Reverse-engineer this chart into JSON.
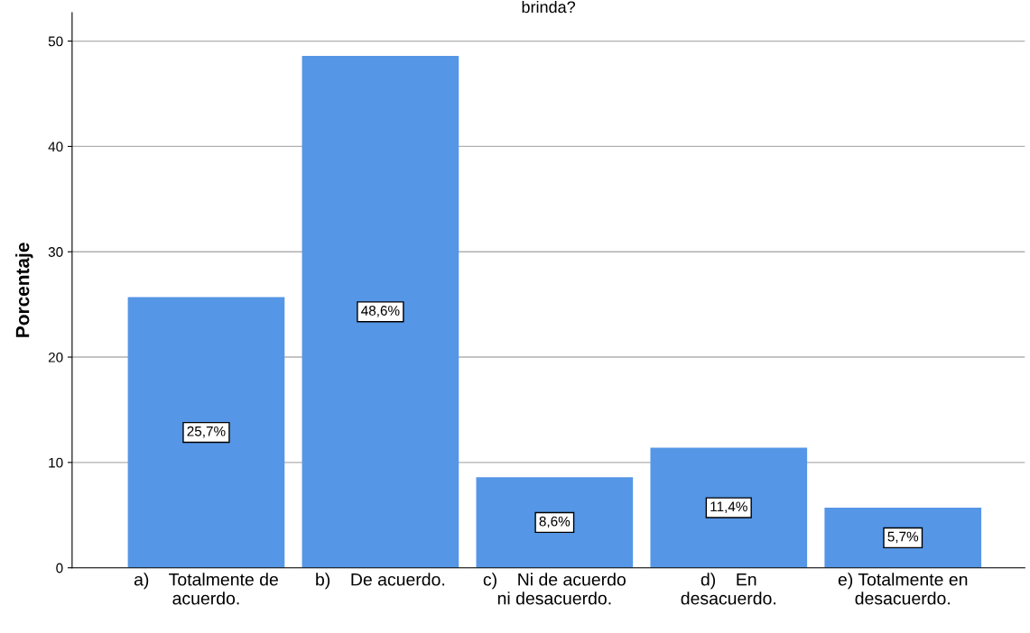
{
  "chart_data": {
    "type": "bar",
    "title": "brinda?",
    "ylabel": "Porcentaje",
    "categories": [
      "a)    Totalmente de\nacuerdo.",
      "b)    De acuerdo.",
      "c)    Ni de acuerdo\nni desacuerdo.",
      "d)    En\ndesacuerdo.",
      "e) Totalmente en\ndesacuerdo."
    ],
    "values": [
      25.7,
      48.6,
      8.6,
      11.4,
      5.7
    ],
    "value_labels": [
      "25,7%",
      "48,6%",
      "8,6%",
      "11,4%",
      "5,7%"
    ],
    "color": "#5596e6",
    "ylim": [
      0,
      52.7
    ],
    "yticks": [
      0,
      10,
      20,
      30,
      40,
      50
    ],
    "grid": "y"
  }
}
